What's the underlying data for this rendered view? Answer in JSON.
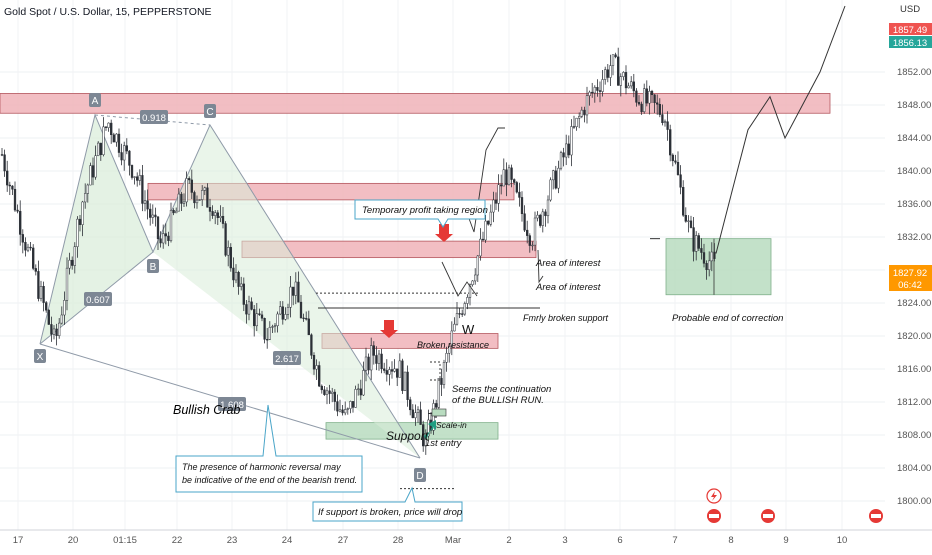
{
  "header": {
    "symbol": "Gold Spot / U.S. Dollar, 15, PEPPERSTONE",
    "currency": "USD"
  },
  "price_badges": {
    "top_red": "1857.49",
    "top_green": "1856.13",
    "last_price": "1827.92",
    "countdown": "06:42"
  },
  "colors": {
    "bull_candle": "#26a69a",
    "bear_candle": "#ef5350",
    "resistance_zone": "#f0b3b8",
    "support_zone": "#b9dcc0",
    "harmonic_fill": "#d8ecd8",
    "price_badge": "#ff9800"
  },
  "harmonic_pattern": {
    "name": "Bullish Crab",
    "points": [
      "X",
      "A",
      "B",
      "C",
      "D"
    ],
    "ratios": [
      "0.918",
      "0.607",
      "2.617",
      "1.608"
    ]
  },
  "annotations": {
    "temporary_profit": "Temporary profit taking region",
    "area_interest_1": "Area of interest",
    "area_interest_2": "Area of interest",
    "fmrly_broken": "Fmrly broken support",
    "broken_resistance": "Broken resistance",
    "continuation_1": "Seems the continuation",
    "continuation_2": "of the BULLISH RUN.",
    "scale_in": "Scale-in",
    "support": "Support",
    "first_entry": "1st entry",
    "harmonic_note_1": "The presence of harmonic reversal may",
    "harmonic_note_2": "be indicative of the end of the bearish trend.",
    "support_broken": "If support is broken, price will drop",
    "probable_end": "Probable end of correction",
    "w_mark": "W"
  },
  "chart_data": {
    "type": "candlestick",
    "title": "Gold Spot / U.S. Dollar, 15, PEPPERSTONE",
    "y_axis": {
      "range": [
        1798,
        1860
      ],
      "ticks": [
        1800,
        1804,
        1808,
        1812,
        1816,
        1820,
        1824,
        1828,
        1832,
        1836,
        1840,
        1844,
        1848,
        1852
      ],
      "unit": "USD"
    },
    "x_axis": {
      "ticks": [
        "17",
        "20",
        "01:15",
        "22",
        "23",
        "24",
        "27",
        "28",
        "Mar",
        "2",
        "3",
        "6",
        "7",
        "8",
        "9",
        "10"
      ]
    },
    "price_path": [
      {
        "time": "17",
        "price": 1842
      },
      {
        "time": "17",
        "price": 1830
      },
      {
        "time": "17",
        "price": 1819
      },
      {
        "time": "20",
        "price": 1836
      },
      {
        "time": "20",
        "price": 1846
      },
      {
        "time": "01:15",
        "price": 1840
      },
      {
        "time": "22",
        "price": 1831
      },
      {
        "time": "22",
        "price": 1838
      },
      {
        "time": "23",
        "price": 1836
      },
      {
        "time": "23",
        "price": 1825
      },
      {
        "time": "24",
        "price": 1820
      },
      {
        "time": "24",
        "price": 1826
      },
      {
        "time": "27",
        "price": 1815
      },
      {
        "time": "27",
        "price": 1810
      },
      {
        "time": "28",
        "price": 1818
      },
      {
        "time": "28",
        "price": 1816
      },
      {
        "time": "28",
        "price": 1807
      },
      {
        "time": "Mar",
        "price": 1820
      },
      {
        "time": "Mar",
        "price": 1830
      },
      {
        "time": "2",
        "price": 1840
      },
      {
        "time": "2",
        "price": 1832
      },
      {
        "time": "3",
        "price": 1840
      },
      {
        "time": "3",
        "price": 1848
      },
      {
        "time": "6",
        "price": 1853
      },
      {
        "time": "6",
        "price": 1849
      },
      {
        "time": "7",
        "price": 1847
      },
      {
        "time": "7",
        "price": 1832
      },
      {
        "time": "7",
        "price": 1828
      }
    ],
    "projection": [
      {
        "time": "7",
        "price": 1830
      },
      {
        "time": "8",
        "price": 1838
      },
      {
        "time": "8",
        "price": 1845
      },
      {
        "time": "9",
        "price": 1849
      },
      {
        "time": "9",
        "price": 1844
      },
      {
        "time": "10",
        "price": 1852
      },
      {
        "time": "10",
        "price": 1860
      }
    ],
    "zones": [
      {
        "type": "resistance",
        "from": 1847,
        "to": 1849.4
      },
      {
        "type": "resistance",
        "from": 1836.5,
        "to": 1838.5
      },
      {
        "type": "resistance",
        "from": 1829.5,
        "to": 1831.5
      },
      {
        "type": "resistance",
        "from": 1818.5,
        "to": 1820.3
      },
      {
        "type": "support",
        "from": 1807.5,
        "to": 1809.5
      },
      {
        "type": "support",
        "from": 1825,
        "to": 1831.8
      }
    ],
    "levels": [
      {
        "price": 1825.2,
        "style": "dotted"
      },
      {
        "price": 1823.4,
        "style": "solid"
      },
      {
        "price": 1810.6,
        "style": "solid"
      },
      {
        "price": 1801.5,
        "style": "dotted"
      }
    ],
    "grid": true,
    "legend": "none"
  }
}
